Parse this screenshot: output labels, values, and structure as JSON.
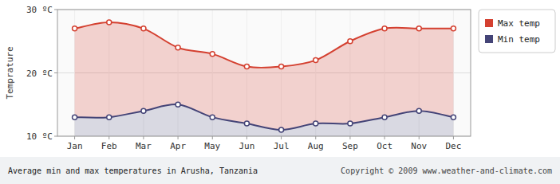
{
  "chart_data": {
    "type": "line",
    "title": "Average min and max temperatures in Arusha, Tanzania",
    "annotations": [
      "Copyright © 2009 www.weather-and-climate.com"
    ],
    "ylabel": "Temprature",
    "categories": [
      "Jan",
      "Feb",
      "Mar",
      "Apr",
      "May",
      "Jun",
      "Jul",
      "Aug",
      "Sep",
      "Oct",
      "Nov",
      "Dec"
    ],
    "series": [
      {
        "name": "Max temp",
        "color": "#d44030",
        "marker": "circle",
        "values": [
          27,
          28,
          27,
          24,
          23,
          21,
          21,
          22,
          25,
          27,
          27,
          27
        ]
      },
      {
        "name": "Min temp",
        "color": "#444477",
        "marker": "circle",
        "values": [
          13,
          13,
          14,
          15,
          13,
          12,
          11,
          12,
          12,
          13,
          14,
          13
        ]
      }
    ],
    "ylim": [
      10,
      30
    ],
    "yticks": [
      {
        "value": 10,
        "label": "10 ºC"
      },
      {
        "value": 20,
        "label": "20 ºC"
      },
      {
        "value": 30,
        "label": "30 ºC"
      }
    ],
    "grid": true,
    "legend": "upper right"
  }
}
